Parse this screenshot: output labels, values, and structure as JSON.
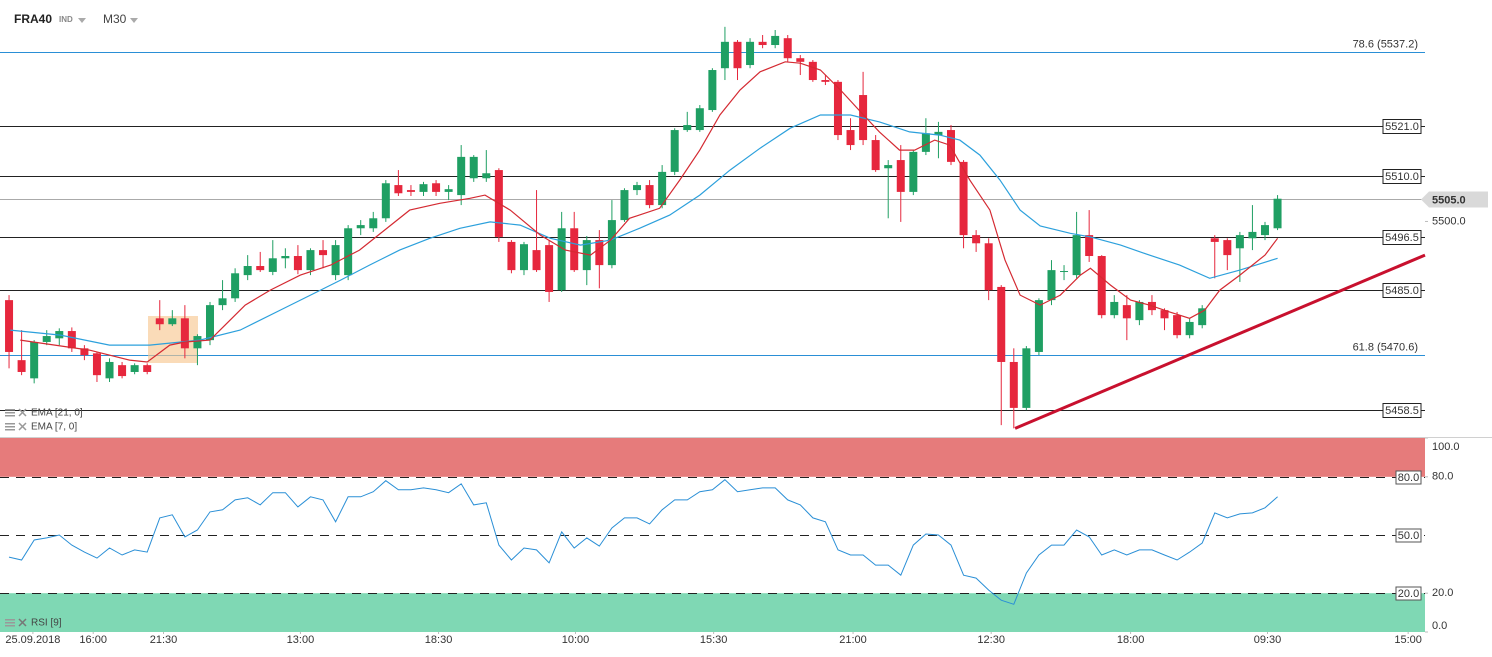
{
  "toolbar": {
    "symbol": "FRA40",
    "market": "IND",
    "timeframe": "M30"
  },
  "chart_data": [
    {
      "type": "candlestick",
      "xlim": [
        -0.72,
        112.74
      ],
      "xticks": [
        {
          "value": 1.9,
          "label": "25.09.2018"
        },
        {
          "value": 6.7,
          "label": "16:00"
        },
        {
          "value": 12.3,
          "label": "21:30"
        },
        {
          "value": 23.2,
          "label": "13:00"
        },
        {
          "value": 34.2,
          "label": "18:30"
        },
        {
          "value": 45.1,
          "label": "10:00"
        },
        {
          "value": 56.1,
          "label": "15:30"
        },
        {
          "value": 67.2,
          "label": "21:00"
        },
        {
          "value": 78.2,
          "label": "12:30"
        },
        {
          "value": 89.3,
          "label": "18:00"
        },
        {
          "value": 100.2,
          "label": "09:30"
        },
        {
          "value": 111.4,
          "label": "15:00"
        }
      ],
      "ylim": [
        5452.6,
        5548.7
      ],
      "yticks": [
        {
          "value": 5500,
          "label": "5500.0"
        }
      ],
      "up_color": "#1f9f63",
      "down_color": "#e6273d",
      "open": [
        5482.7,
        5469.5,
        5465.5,
        5473.5,
        5474.3,
        5475.9,
        5472.1,
        5471.0,
        5465.5,
        5468.4,
        5466.9,
        5468.4,
        5478.7,
        5477.4,
        5478.7,
        5472.1,
        5473.9,
        5481.6,
        5483.1,
        5488.2,
        5490.2,
        5488.9,
        5491.9,
        5492.4,
        5489.3,
        5493.7,
        5488.2,
        5488.2,
        5498.5,
        5498.5,
        5500.7,
        5508.0,
        5506.9,
        5506.5,
        5508.4,
        5506.5,
        5505.8,
        5509.5,
        5509.5,
        5511.3,
        5495.5,
        5489.3,
        5493.7,
        5494.8,
        5484.9,
        5498.5,
        5489.3,
        5495.9,
        5490.4,
        5500.3,
        5506.9,
        5508.0,
        5503.6,
        5510.9,
        5520.1,
        5520.1,
        5524.5,
        5533.7,
        5539.5,
        5534.4,
        5539.5,
        5538.8,
        5540.3,
        5535.9,
        5535.1,
        5531.1,
        5530.7,
        5520.1,
        5527.8,
        5517.9,
        5511.7,
        5513.5,
        5506.5,
        5515.3,
        5519.0,
        5520.1,
        5513.1,
        5497.0,
        5495.2,
        5485.6,
        5469.1,
        5459.0,
        5471.3,
        5482.7,
        5488.9,
        5488.2,
        5497.0,
        5492.4,
        5479.4,
        5481.6,
        5478.3,
        5482.3,
        5480.5,
        5479.4,
        5475.0,
        5477.2,
        5496.3,
        5495.9,
        5494.1,
        5496.3,
        5497.0,
        5498.5
      ],
      "high": [
        5483.8,
        5476.1,
        5473.9,
        5476.1,
        5476.5,
        5476.7,
        5472.8,
        5471.3,
        5469.9,
        5469.1,
        5468.8,
        5468.8,
        5482.7,
        5480.5,
        5481.6,
        5475.2,
        5482.3,
        5487.1,
        5489.7,
        5492.6,
        5493.3,
        5495.9,
        5494.1,
        5494.8,
        5494.1,
        5495.9,
        5495.9,
        5499.2,
        5500.3,
        5502.1,
        5509.1,
        5511.3,
        5508.0,
        5508.7,
        5509.1,
        5508.0,
        5516.8,
        5514.6,
        5515.7,
        5511.7,
        5495.9,
        5495.5,
        5506.9,
        5495.9,
        5502.1,
        5502.1,
        5496.8,
        5498.1,
        5504.7,
        5507.3,
        5508.7,
        5509.1,
        5512.4,
        5520.5,
        5524.1,
        5525.6,
        5533.7,
        5542.8,
        5539.9,
        5540.3,
        5541.0,
        5542.1,
        5541.0,
        5536.6,
        5535.5,
        5532.2,
        5531.1,
        5522.7,
        5532.9,
        5519.0,
        5513.5,
        5516.8,
        5515.7,
        5522.7,
        5521.9,
        5521.2,
        5513.5,
        5498.1,
        5496.3,
        5486.0,
        5472.1,
        5472.6,
        5483.1,
        5491.5,
        5490.4,
        5502.1,
        5502.5,
        5492.6,
        5483.8,
        5483.8,
        5482.7,
        5483.8,
        5480.9,
        5480.1,
        5478.7,
        5481.6,
        5497.0,
        5496.3,
        5497.7,
        5503.6,
        5499.9,
        5505.8
      ],
      "low": [
        5467.7,
        5466.2,
        5464.4,
        5472.8,
        5472.8,
        5471.3,
        5469.5,
        5464.7,
        5464.7,
        5465.5,
        5466.4,
        5466.4,
        5476.1,
        5477.0,
        5469.9,
        5468.4,
        5472.8,
        5480.5,
        5482.3,
        5487.1,
        5488.9,
        5488.2,
        5489.7,
        5488.4,
        5488.2,
        5489.7,
        5487.1,
        5487.1,
        5497.0,
        5497.7,
        5499.9,
        5505.6,
        5505.6,
        5505.6,
        5505.6,
        5504.7,
        5503.6,
        5508.7,
        5508.7,
        5495.5,
        5488.6,
        5488.2,
        5488.9,
        5482.3,
        5484.5,
        5488.9,
        5486.0,
        5485.3,
        5489.7,
        5499.9,
        5505.8,
        5502.9,
        5502.9,
        5510.2,
        5519.7,
        5519.7,
        5524.1,
        5531.1,
        5531.1,
        5533.7,
        5538.1,
        5538.1,
        5535.1,
        5532.2,
        5530.7,
        5530.0,
        5517.9,
        5515.7,
        5516.8,
        5510.9,
        5500.7,
        5499.9,
        5505.8,
        5514.6,
        5513.9,
        5512.4,
        5494.1,
        5493.3,
        5482.7,
        5455.2,
        5454.5,
        5458.5,
        5470.6,
        5481.6,
        5487.1,
        5487.5,
        5491.1,
        5478.7,
        5478.7,
        5473.9,
        5477.2,
        5479.4,
        5476.1,
        5474.3,
        5474.3,
        5476.5,
        5487.5,
        5489.3,
        5486.7,
        5493.7,
        5495.9,
        5498.1
      ],
      "close": [
        5471.3,
        5466.9,
        5473.5,
        5474.8,
        5475.9,
        5472.1,
        5470.6,
        5466.2,
        5469.1,
        5466.0,
        5468.4,
        5466.9,
        5477.4,
        5478.7,
        5472.1,
        5474.8,
        5481.6,
        5483.1,
        5488.6,
        5490.2,
        5489.3,
        5491.9,
        5492.4,
        5489.3,
        5493.7,
        5492.6,
        5494.8,
        5498.5,
        5499.2,
        5500.7,
        5508.4,
        5506.2,
        5506.5,
        5508.2,
        5506.5,
        5507.1,
        5514.2,
        5514.2,
        5510.6,
        5496.6,
        5489.3,
        5495.0,
        5489.3,
        5484.5,
        5498.5,
        5489.3,
        5495.9,
        5490.4,
        5500.3,
        5506.9,
        5508.0,
        5503.6,
        5510.9,
        5520.1,
        5521.2,
        5524.9,
        5533.3,
        5539.5,
        5533.7,
        5539.5,
        5538.8,
        5540.8,
        5535.9,
        5535.1,
        5531.1,
        5530.7,
        5519.0,
        5516.8,
        5517.9,
        5511.3,
        5512.4,
        5506.5,
        5515.3,
        5519.4,
        5519.7,
        5513.1,
        5497.0,
        5495.2,
        5484.9,
        5469.1,
        5459.0,
        5472.1,
        5482.7,
        5489.3,
        5489.1,
        5497.0,
        5492.4,
        5479.4,
        5482.3,
        5478.7,
        5482.3,
        5480.5,
        5478.7,
        5475.0,
        5477.9,
        5480.9,
        5495.5,
        5492.6,
        5497.0,
        5497.7,
        5499.2,
        5505.0
      ],
      "lines": [
        {
          "name": "EMA [21, 0]",
          "color": "#2ca0dc",
          "x": [
            0.1,
            4.1,
            8.0,
            11.2,
            15.2,
            18.4,
            21.6,
            24.0,
            26.4,
            28.7,
            31.1,
            33.5,
            35.9,
            38.3,
            40.7,
            43.1,
            45.5,
            47.9,
            50.2,
            52.6,
            55.0,
            57.4,
            59.8,
            62.2,
            64.6,
            67.0,
            69.3,
            71.7,
            74.1,
            75.7,
            77.3,
            78.9,
            80.5,
            82.1,
            84.5,
            86.1,
            88.5,
            90.8,
            93.2,
            95.6,
            98.0,
            101.0
          ],
          "values": [
            5476.1,
            5475.0,
            5472.8,
            5472.8,
            5473.9,
            5476.1,
            5480.5,
            5483.8,
            5487.1,
            5490.4,
            5493.7,
            5496.3,
            5498.5,
            5499.9,
            5499.2,
            5496.3,
            5494.8,
            5495.9,
            5498.5,
            5501.4,
            5505.8,
            5511.3,
            5516.1,
            5520.5,
            5523.4,
            5523.4,
            5521.9,
            5519.7,
            5519.0,
            5517.9,
            5514.6,
            5509.1,
            5502.5,
            5499.0,
            5497.4,
            5496.6,
            5494.8,
            5492.6,
            5490.4,
            5487.5,
            5489.3,
            5491.9
          ]
        },
        {
          "name": "EMA [7, 0]",
          "color": "#d42a32",
          "x": [
            0.9,
            6.4,
            9.6,
            11.0,
            12.8,
            14.0,
            16.0,
            17.2,
            18.8,
            20.8,
            23.2,
            25.6,
            27.9,
            29.9,
            31.9,
            34.3,
            36.7,
            37.9,
            39.9,
            42.3,
            44.3,
            46.3,
            47.9,
            49.4,
            51.8,
            53.4,
            55.0,
            56.6,
            58.2,
            59.8,
            61.8,
            63.0,
            64.6,
            66.2,
            67.8,
            69.3,
            70.9,
            72.1,
            73.7,
            74.9,
            76.5,
            78.1,
            79.3,
            80.5,
            82.1,
            83.7,
            85.3,
            86.1,
            87.7,
            89.3,
            90.8,
            92.4,
            94.0,
            95.2,
            96.4,
            98.0,
            100.0,
            101.0
          ],
          "values": [
            5473.9,
            5471.7,
            5469.5,
            5469.1,
            5472.8,
            5473.5,
            5473.9,
            5477.2,
            5481.6,
            5484.9,
            5488.2,
            5490.4,
            5493.7,
            5498.1,
            5502.5,
            5504.0,
            5505.1,
            5505.8,
            5502.5,
            5497.0,
            5493.7,
            5492.6,
            5495.9,
            5500.7,
            5502.9,
            5509.1,
            5515.7,
            5523.4,
            5528.9,
            5532.9,
            5535.1,
            5534.8,
            5533.3,
            5528.9,
            5524.1,
            5519.7,
            5515.7,
            5515.7,
            5517.9,
            5516.8,
            5509.1,
            5502.5,
            5491.5,
            5483.8,
            5481.6,
            5483.8,
            5488.2,
            5489.7,
            5486.0,
            5482.7,
            5481.6,
            5480.1,
            5478.7,
            5480.5,
            5484.9,
            5488.2,
            5492.6,
            5496.3
          ]
        }
      ],
      "levels": [
        {
          "value": 5537.2,
          "label": "78.6 (5537.2)",
          "color": "#2a8fd6",
          "boxed": false
        },
        {
          "value": 5521.0,
          "label": "5521.0",
          "color": "#222222",
          "boxed": true
        },
        {
          "value": 5510.0,
          "label": "5510.0",
          "color": "#222222",
          "boxed": true
        },
        {
          "value": 5496.5,
          "label": "5496.5",
          "color": "#222222",
          "boxed": true
        },
        {
          "value": 5485.0,
          "label": "5485.0",
          "color": "#222222",
          "boxed": true
        },
        {
          "value": 5470.6,
          "label": "61.8 (5470.6)",
          "color": "#2a8fd6",
          "boxed": false
        },
        {
          "value": 5458.5,
          "label": "5458.5",
          "color": "#222222",
          "boxed": true
        }
      ],
      "last": {
        "value": 5505.0,
        "label": "5505.0"
      },
      "trendline": {
        "color": "#c8102e",
        "x": [
          80.1,
          112.74
        ],
        "values": [
          5454.5,
          5492.6
        ]
      }
    },
    {
      "type": "line",
      "name": "RSI [9]",
      "color": "#2a8fd6",
      "ylim": [
        0,
        100
      ],
      "yticks": [
        {
          "value": 100,
          "label": "100.0"
        },
        {
          "value": 80,
          "label": "80.0"
        },
        {
          "value": 20,
          "label": "20.0"
        },
        {
          "value": 0,
          "label": "0.0"
        }
      ],
      "levels": [
        {
          "value": 80,
          "label": "80.0"
        },
        {
          "value": 50,
          "label": "50.0"
        },
        {
          "value": 20,
          "label": "20.0"
        }
      ],
      "zones": [
        {
          "from": 80,
          "to": 100,
          "color": "#e67b7b"
        },
        {
          "from": 0,
          "to": 20,
          "color": "#7fd8b4"
        }
      ],
      "values": [
        38.6,
        37.1,
        47.4,
        48.5,
        50.0,
        44.8,
        41.2,
        38.1,
        43.3,
        39.7,
        42.3,
        41.2,
        58.8,
        60.4,
        49.0,
        52.6,
        61.9,
        63.0,
        68.1,
        69.2,
        65.5,
        71.8,
        71.8,
        64.5,
        69.7,
        68.1,
        56.8,
        69.7,
        69.7,
        72.3,
        78.0,
        73.3,
        73.3,
        74.3,
        73.3,
        71.8,
        76.4,
        65.5,
        66.6,
        44.8,
        37.1,
        43.3,
        42.3,
        35.6,
        51.6,
        43.3,
        48.5,
        44.3,
        53.6,
        58.8,
        58.8,
        55.7,
        63.0,
        68.1,
        68.1,
        72.3,
        73.3,
        78.5,
        72.3,
        73.3,
        74.3,
        74.3,
        68.1,
        65.5,
        58.8,
        56.8,
        42.3,
        39.7,
        39.7,
        34.5,
        34.5,
        29.3,
        44.8,
        50.5,
        50.0,
        44.8,
        29.3,
        27.8,
        21.6,
        16.4,
        14.3,
        30.4,
        39.7,
        44.8,
        44.8,
        52.6,
        49.0,
        39.7,
        42.3,
        39.7,
        42.3,
        42.3,
        39.7,
        37.1,
        41.2,
        45.9,
        61.4,
        58.8,
        60.9,
        61.4,
        64.0,
        69.7
      ]
    }
  ]
}
